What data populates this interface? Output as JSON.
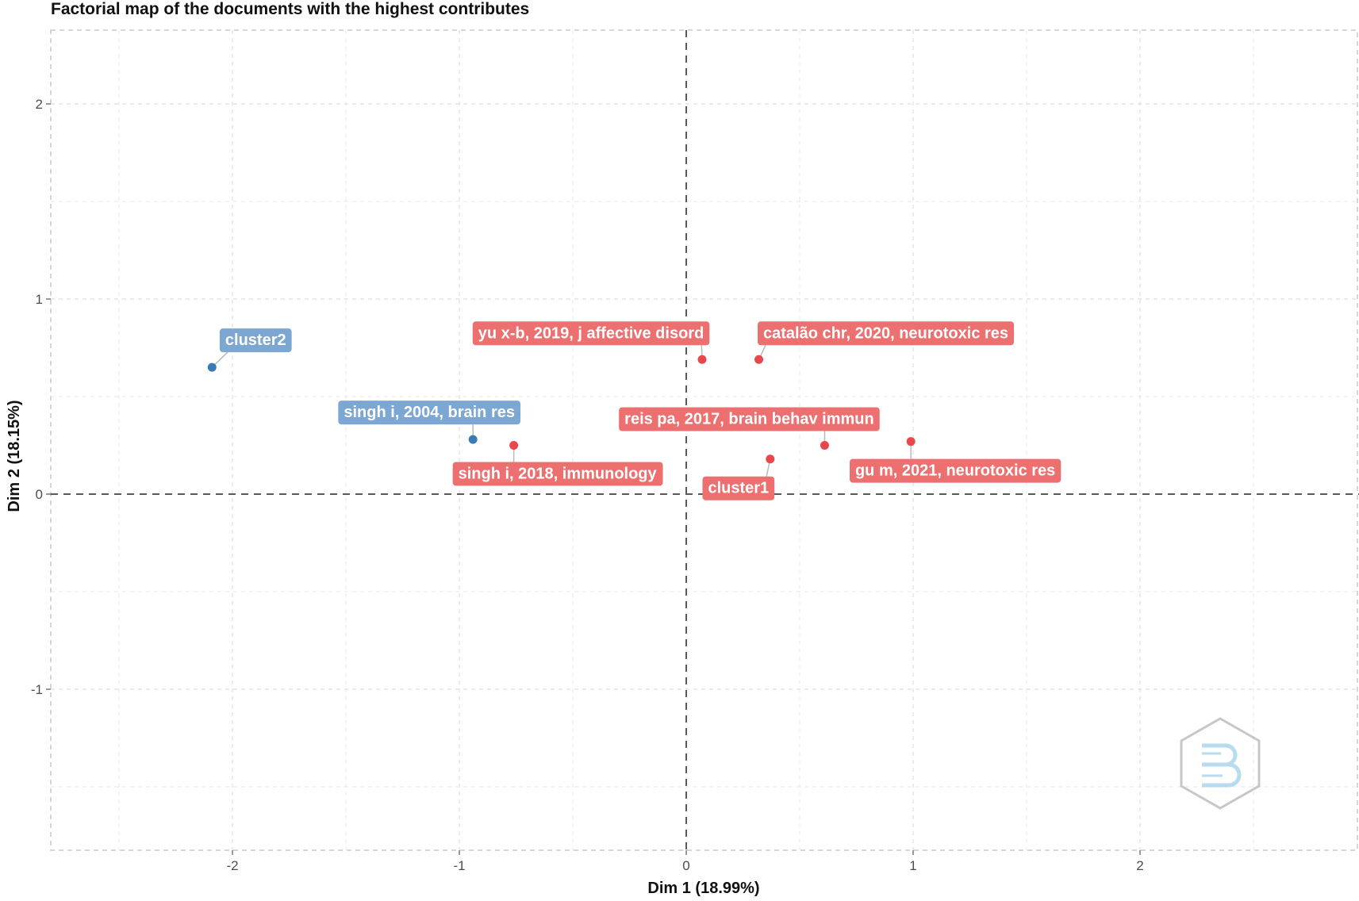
{
  "chart_data": {
    "type": "scatter",
    "title": "Factorial map of the documents with the highest contributes",
    "xlabel": "Dim 1 (18.99%)",
    "ylabel": "Dim 2 (18.15%)",
    "xlim": [
      -2.8,
      2.9
    ],
    "ylim": [
      -1.8,
      2.38
    ],
    "xticks": [
      -2,
      -1,
      0,
      1,
      2
    ],
    "yticks": [
      -1,
      0,
      1,
      2
    ],
    "grid": true,
    "reference_lines": [
      0,
      0
    ],
    "clusters": [
      {
        "name": "cluster1",
        "color": "#e8474b",
        "label_color": "#ec7070"
      },
      {
        "name": "cluster2",
        "color": "#3a7ab5",
        "label_color": "#7ba7d2"
      }
    ],
    "points": [
      {
        "label": "cluster2",
        "x": -2.09,
        "y": 0.65,
        "cluster": "cluster2"
      },
      {
        "label": "singh i, 2004, brain res",
        "x": -0.94,
        "y": 0.28,
        "cluster": "cluster2"
      },
      {
        "label": "singh i, 2018, immunology",
        "x": -0.76,
        "y": 0.25,
        "cluster": "cluster1"
      },
      {
        "label": "yu x-b, 2019, j affective disord",
        "x": 0.07,
        "y": 0.69,
        "cluster": "cluster1"
      },
      {
        "label": "catalão chr, 2020, neurotoxic res",
        "x": 0.32,
        "y": 0.69,
        "cluster": "cluster1"
      },
      {
        "label": "reis pa, 2017, brain behav immun",
        "x": 0.61,
        "y": 0.25,
        "cluster": "cluster1"
      },
      {
        "label": "cluster1",
        "x": 0.37,
        "y": 0.18,
        "cluster": "cluster1"
      },
      {
        "label": "gu m, 2021, neurotoxic res",
        "x": 0.99,
        "y": 0.27,
        "cluster": "cluster1"
      }
    ]
  }
}
